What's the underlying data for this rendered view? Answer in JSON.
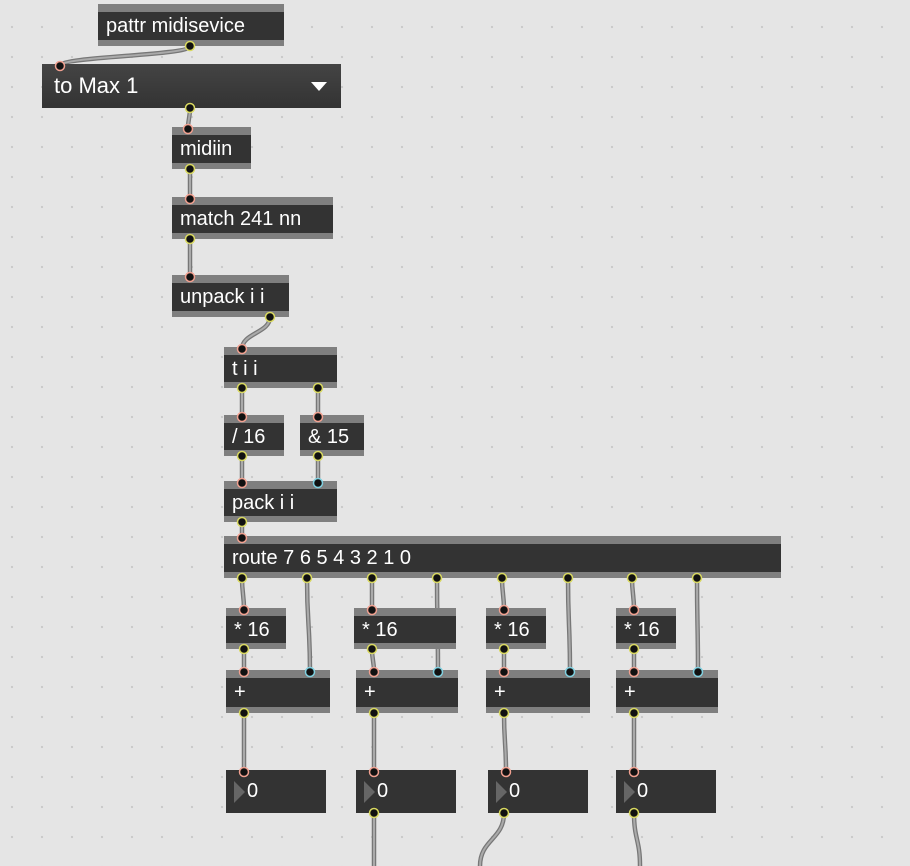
{
  "objects": {
    "pattr": "pattr midisevice",
    "umenu": "to Max 1",
    "midiin": "midiin",
    "match": "match 241 nn",
    "unpack": "unpack i i",
    "trigger": "t i i",
    "divide": "/ 16",
    "bitand": "& 15",
    "pack": "pack i i",
    "route": "route 7 6 5 4 3 2 1 0",
    "multiply": [
      "* 16",
      "* 16",
      "* 16",
      "* 16"
    ],
    "add": [
      "+",
      "+",
      "+",
      "+"
    ],
    "numbers": [
      "0",
      "0",
      "0",
      "0"
    ]
  },
  "colors": {
    "inlet": "#f0a090",
    "outlet": "#d8d860",
    "cold_inlet": "#80d0e0",
    "cord": "#999999",
    "box": "#333333"
  }
}
